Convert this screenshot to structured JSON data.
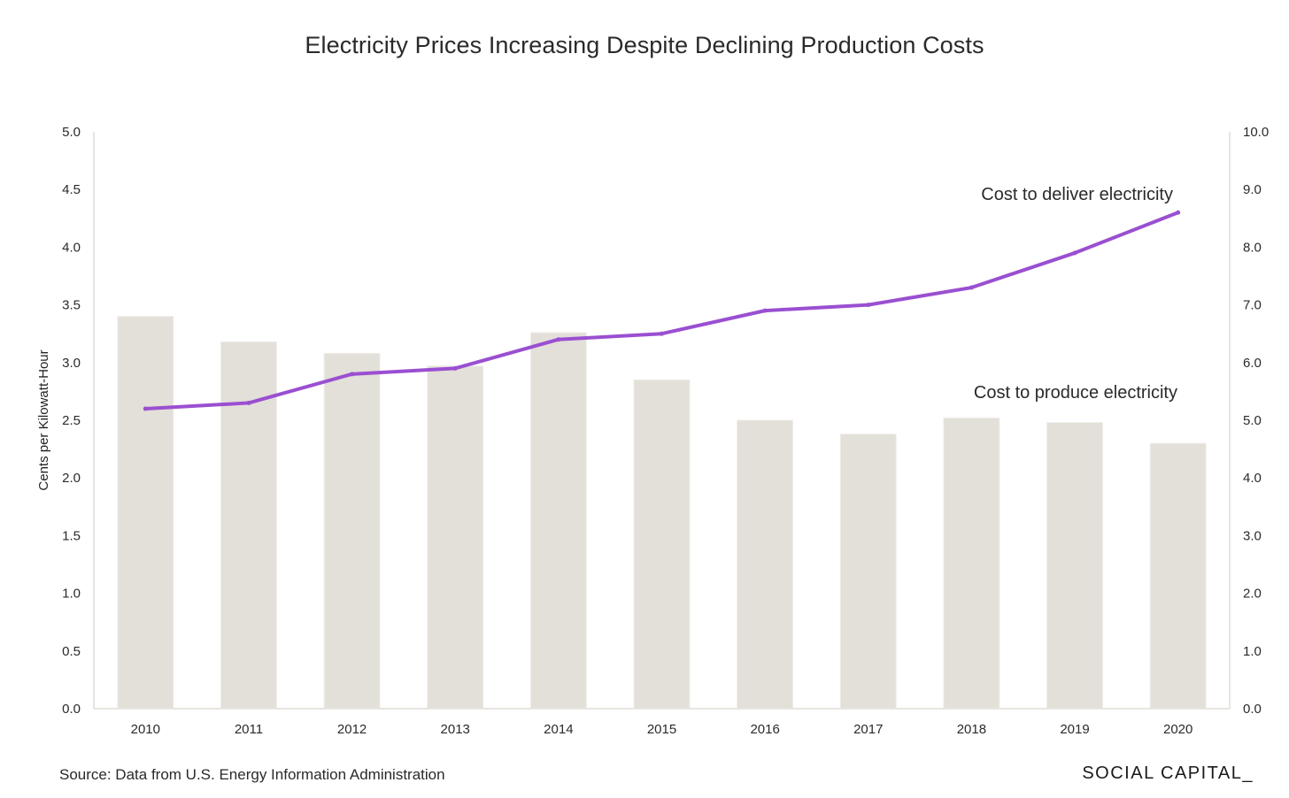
{
  "chart_data": {
    "type": "bar",
    "title": "Electricity Prices Increasing Despite Declining Production Costs",
    "categories": [
      "2010",
      "2011",
      "2012",
      "2013",
      "2014",
      "2015",
      "2016",
      "2017",
      "2018",
      "2019",
      "2020"
    ],
    "series": [
      {
        "type": "bar",
        "axis": "left",
        "values": [
          3.4,
          3.18,
          3.08,
          2.97,
          3.26,
          2.85,
          2.5,
          2.38,
          2.52,
          2.48,
          2.3
        ]
      },
      {
        "type": "line",
        "axis": "right",
        "values": [
          5.2,
          5.3,
          5.8,
          5.9,
          6.4,
          6.5,
          6.9,
          7.0,
          7.3,
          7.9,
          8.6
        ]
      }
    ],
    "ylabel": "Cents per Kilowatt-Hour",
    "ylim": [
      0,
      5
    ],
    "yticks": [
      "0.0",
      "0.5",
      "1.0",
      "1.5",
      "2.0",
      "2.5",
      "3.0",
      "3.5",
      "4.0",
      "4.5",
      "5.0"
    ],
    "y2lim": [
      0,
      10
    ],
    "y2ticks": [
      "0.0",
      "1.0",
      "2.0",
      "3.0",
      "4.0",
      "5.0",
      "6.0",
      "7.0",
      "8.0",
      "9.0",
      "10.0"
    ],
    "annotations": {
      "line": "Cost to deliver electricity",
      "bars": "Cost to produce electricity"
    },
    "grid": false,
    "colors": {
      "bar": "#e3dfd9",
      "line": "#9a4fd1",
      "axis": "#e8e5e0"
    }
  },
  "source": "Source:  Data from U.S. Energy Information Administration",
  "brand": "SOCIAL CAPITAL_"
}
